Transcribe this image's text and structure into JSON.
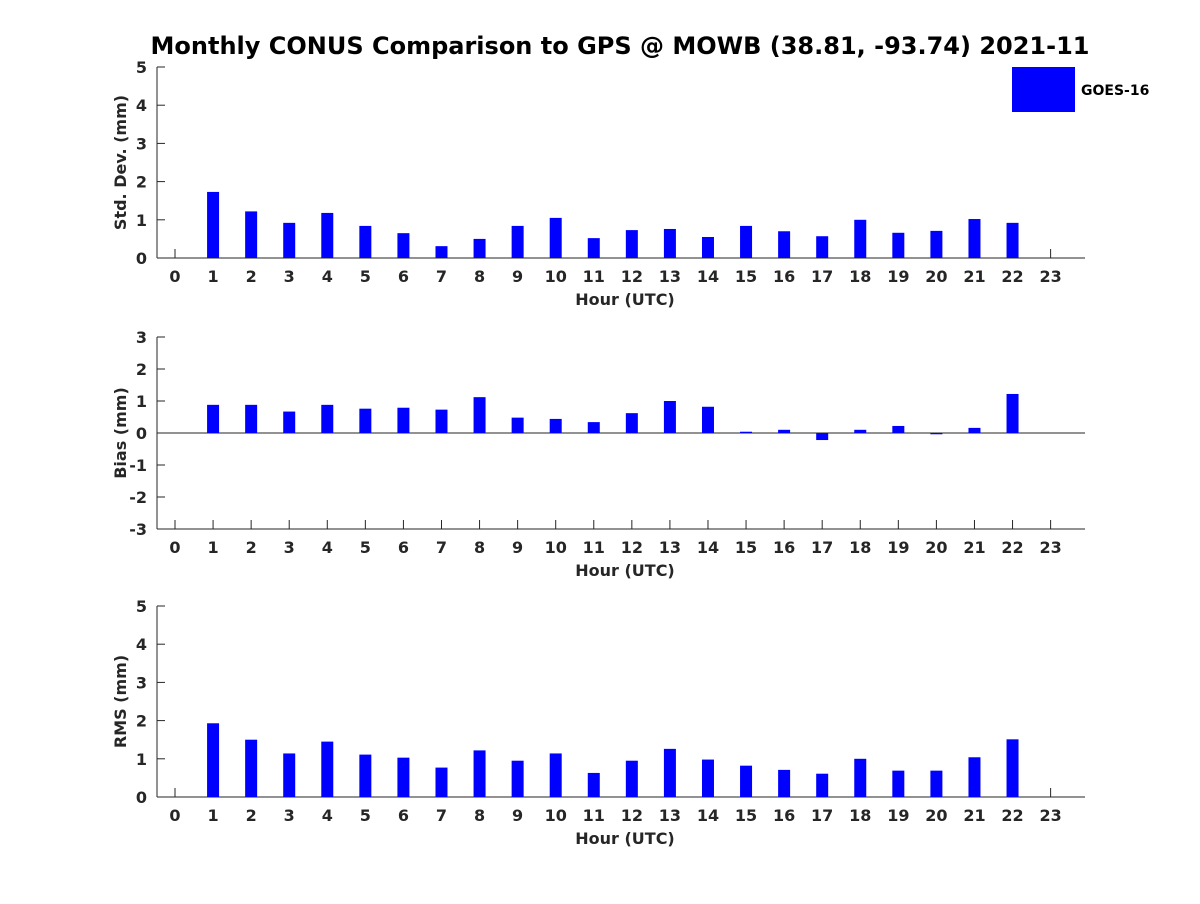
{
  "chart_data": [
    {
      "type": "bar",
      "title": "Monthly CONUS Comparison to GPS @ MOWB (38.81, -93.74) 2021-11",
      "xlabel": "Hour (UTC)",
      "ylabel": "Std. Dev. (mm)",
      "categories": [
        "0",
        "1",
        "2",
        "3",
        "4",
        "5",
        "6",
        "7",
        "8",
        "9",
        "10",
        "11",
        "12",
        "13",
        "14",
        "15",
        "16",
        "17",
        "18",
        "19",
        "20",
        "21",
        "22",
        "23"
      ],
      "yticks": [
        "0",
        "1",
        "2",
        "3",
        "4",
        "5"
      ],
      "ylim": [
        0,
        5
      ],
      "series": [
        {
          "name": "GOES-16",
          "color": "#0000ff",
          "values": [
            null,
            1.73,
            1.22,
            0.92,
            1.18,
            0.84,
            0.65,
            0.31,
            0.5,
            0.84,
            1.05,
            0.52,
            0.73,
            0.76,
            0.55,
            0.84,
            0.7,
            0.57,
            1.0,
            0.66,
            0.71,
            1.02,
            0.92,
            null
          ]
        }
      ],
      "legend": {
        "position": "top-right",
        "entries": [
          "GOES-16"
        ]
      }
    },
    {
      "type": "bar",
      "xlabel": "Hour (UTC)",
      "ylabel": "Bias (mm)",
      "categories": [
        "0",
        "1",
        "2",
        "3",
        "4",
        "5",
        "6",
        "7",
        "8",
        "9",
        "10",
        "11",
        "12",
        "13",
        "14",
        "15",
        "16",
        "17",
        "18",
        "19",
        "20",
        "21",
        "22",
        "23"
      ],
      "yticks": [
        "-3",
        "-2",
        "-1",
        "0",
        "1",
        "2",
        "3"
      ],
      "ylim": [
        -3,
        3
      ],
      "series": [
        {
          "name": "GOES-16",
          "color": "#0000ff",
          "values": [
            null,
            0.88,
            0.88,
            0.67,
            0.88,
            0.76,
            0.79,
            0.73,
            1.12,
            0.48,
            0.44,
            0.34,
            0.62,
            1.0,
            0.82,
            0.04,
            0.1,
            -0.22,
            0.1,
            0.22,
            -0.04,
            0.16,
            1.22,
            null
          ]
        }
      ]
    },
    {
      "type": "bar",
      "xlabel": "Hour (UTC)",
      "ylabel": "RMS (mm)",
      "categories": [
        "0",
        "1",
        "2",
        "3",
        "4",
        "5",
        "6",
        "7",
        "8",
        "9",
        "10",
        "11",
        "12",
        "13",
        "14",
        "15",
        "16",
        "17",
        "18",
        "19",
        "20",
        "21",
        "22",
        "23"
      ],
      "yticks": [
        "0",
        "1",
        "2",
        "3",
        "4",
        "5"
      ],
      "ylim": [
        0,
        5
      ],
      "series": [
        {
          "name": "GOES-16",
          "color": "#0000ff",
          "values": [
            null,
            1.93,
            1.5,
            1.14,
            1.45,
            1.11,
            1.03,
            0.77,
            1.22,
            0.95,
            1.14,
            0.63,
            0.95,
            1.26,
            0.98,
            0.82,
            0.71,
            0.61,
            1.0,
            0.69,
            0.69,
            1.04,
            1.51,
            null
          ]
        }
      ]
    }
  ]
}
